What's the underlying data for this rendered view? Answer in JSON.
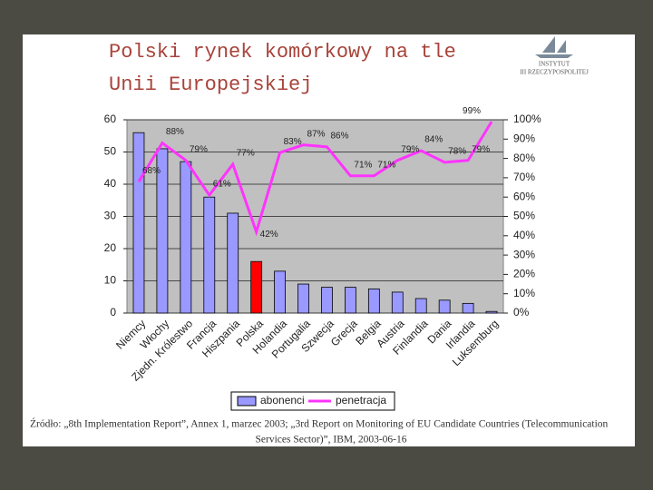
{
  "title_lines": [
    "Polski rynek komórkowy na tle",
    "Unii Europejskiej"
  ],
  "logo": {
    "line1": "INSTYTUT",
    "line2": "III RZECZYPOSPOLITEJ"
  },
  "chart_data": {
    "type": "bar_line",
    "categories": [
      "Niemcy",
      "Włochy",
      "Zjedn. Królestwo",
      "Francja",
      "Hiszpania",
      "Polska",
      "Holandia",
      "Portugalia",
      "Szwecja",
      "Grecja",
      "Belgia",
      "Austria",
      "Finlandia",
      "Dania",
      "Irlandia",
      "Luksemburg"
    ],
    "series": [
      {
        "name": "abonenci",
        "color": "#9999ff",
        "point_colors": [
          "#9999ff",
          "#9999ff",
          "#9999ff",
          "#9999ff",
          "#9999ff",
          "#ff0000",
          "#9999ff",
          "#9999ff",
          "#9999ff",
          "#9999ff",
          "#9999ff",
          "#9999ff",
          "#9999ff",
          "#9999ff",
          "#9999ff",
          "#9999ff"
        ],
        "values": [
          56,
          51,
          47,
          36,
          31,
          16,
          13,
          9,
          8,
          8,
          7.5,
          6.5,
          4.5,
          4,
          3,
          0.5
        ]
      },
      {
        "name": "penetracja",
        "color": "#ff33ff",
        "axis": "y2",
        "values": [
          68,
          88,
          79,
          61,
          77,
          42,
          83,
          87,
          86,
          71,
          71,
          79,
          84,
          78,
          79,
          99
        ],
        "value_labels": [
          "68%",
          "88%",
          "79%",
          "61%",
          "77%",
          "42%",
          "83%",
          "87%",
          "86%",
          "71%",
          "71%",
          "79%",
          "84%",
          "78%",
          "79%",
          "99%"
        ]
      }
    ],
    "ylim": [
      0,
      60
    ],
    "yticks": [
      0,
      10,
      20,
      30,
      40,
      50,
      60
    ],
    "y2lim": [
      0,
      100
    ],
    "y2ticks": [
      {
        "value": 0,
        "label": "0%"
      },
      {
        "value": 10,
        "label": "10%"
      },
      {
        "value": 20,
        "label": "20%"
      },
      {
        "value": 30,
        "label": "30%"
      },
      {
        "value": 40,
        "label": "40%"
      },
      {
        "value": 50,
        "label": "50%"
      },
      {
        "value": 60,
        "label": "60%"
      },
      {
        "value": 70,
        "label": "70%"
      },
      {
        "value": 80,
        "label": "80%"
      },
      {
        "value": 90,
        "label": "90%"
      },
      {
        "value": 100,
        "label": "100%"
      }
    ],
    "grid": true
  },
  "source_lines": [
    "Źródło: „8th Implementation Report”, Annex 1, marzec 2003; „3rd Report on Monitoring of EU Candidate Countries (Telecommunication",
    "Services Sector)”, IBM, 2003-06-16"
  ]
}
